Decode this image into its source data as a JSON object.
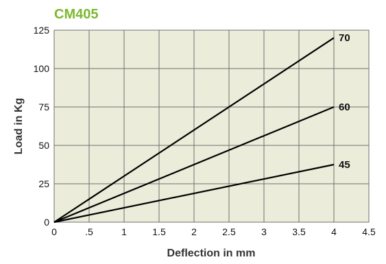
{
  "chart_data": {
    "type": "line",
    "title": "CM405",
    "xlabel": "Deflection in mm",
    "ylabel": "Load in Kg",
    "xlim": [
      0,
      4.5
    ],
    "ylim": [
      0,
      125
    ],
    "x_ticks": [
      0,
      0.5,
      1,
      1.5,
      2,
      2.5,
      3,
      3.5,
      4,
      4.5
    ],
    "x_tick_labels": [
      "0",
      ".5",
      "1",
      "1.5",
      "2",
      "2.5",
      "3",
      "3.5",
      "4",
      "4.5"
    ],
    "y_ticks": [
      0,
      25,
      50,
      75,
      100,
      125
    ],
    "y_tick_labels": [
      "0",
      "25",
      "50",
      "75",
      "100",
      "125"
    ],
    "grid": true,
    "series": [
      {
        "name": "70",
        "x": [
          0,
          4
        ],
        "y": [
          0,
          120
        ]
      },
      {
        "name": "60",
        "x": [
          0,
          4
        ],
        "y": [
          0,
          75
        ]
      },
      {
        "name": "45",
        "x": [
          0,
          4
        ],
        "y": [
          0,
          37.5
        ]
      }
    ],
    "colors": {
      "title": "#7db82f",
      "plot_background": "#ebedda",
      "grid": "#6e6e6e",
      "line": "#000000"
    }
  }
}
